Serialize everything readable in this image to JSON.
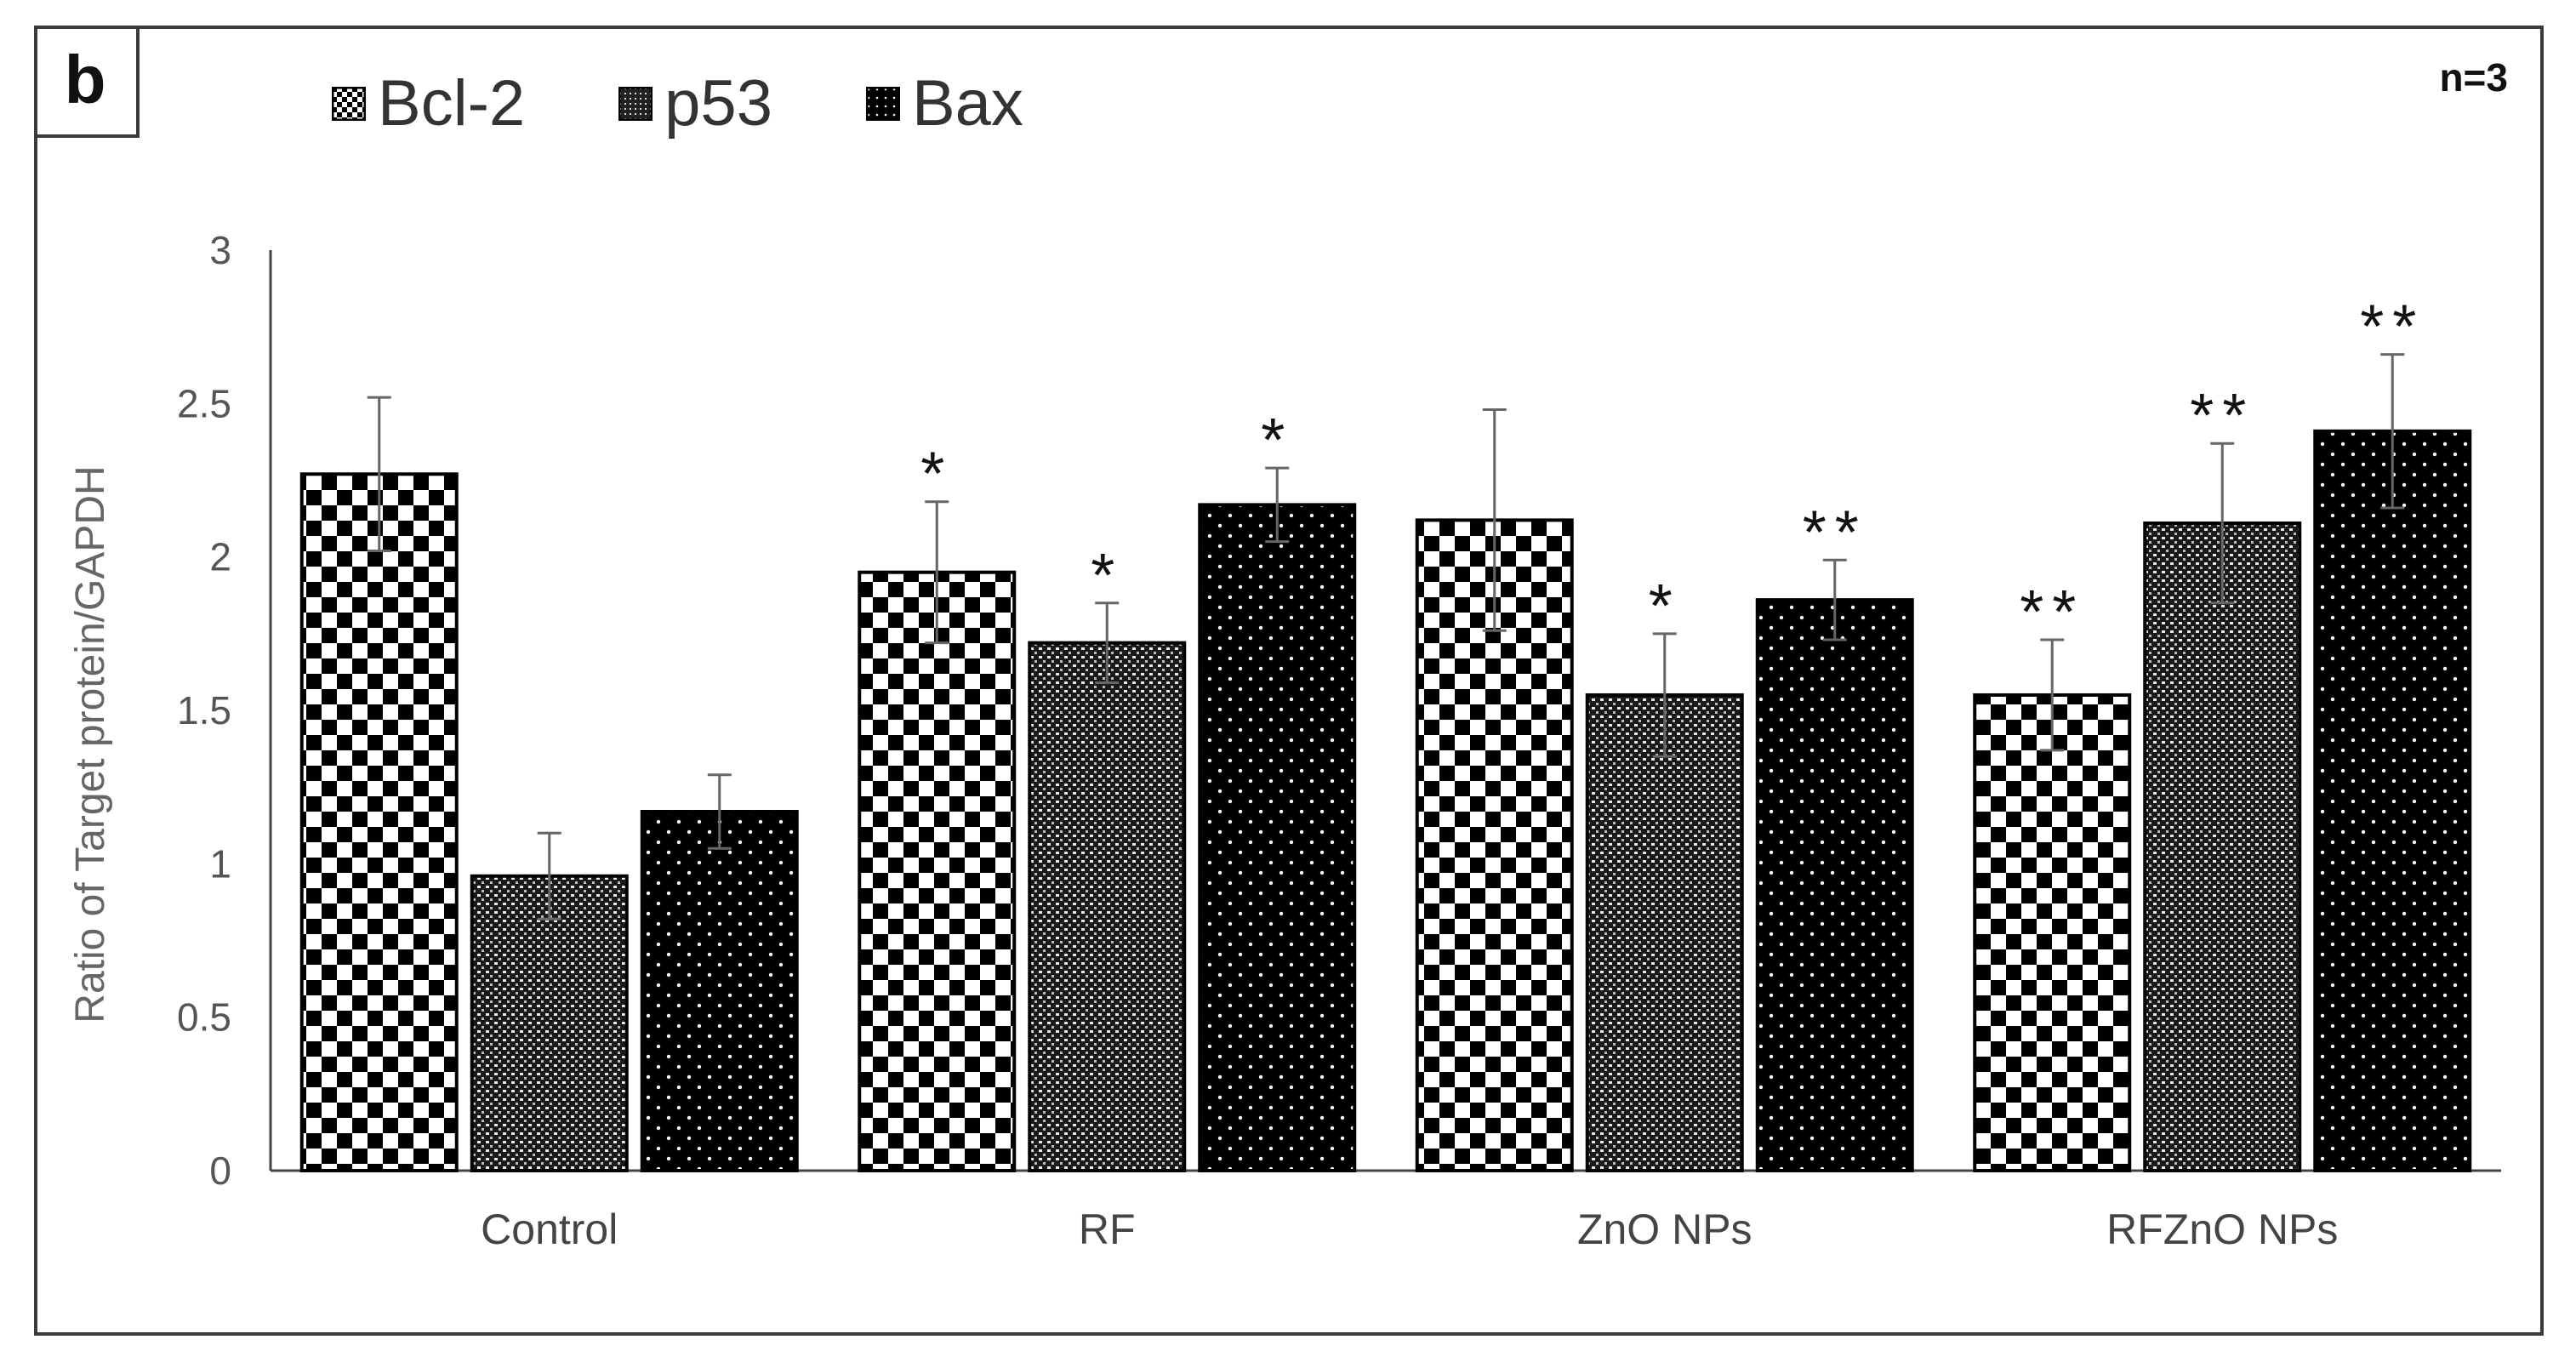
{
  "panel_label": "b",
  "annotation_n": "n=3",
  "chart_data": {
    "type": "bar",
    "title": "",
    "xlabel": "",
    "ylabel": "Ratio of Target protein/GAPDH",
    "ylim": [
      0,
      3
    ],
    "yticks": [
      "0",
      "0.5",
      "1",
      "1.5",
      "2",
      "2.5",
      "3"
    ],
    "grid": false,
    "legend_position": "top-left",
    "categories": [
      "Control",
      "RF",
      "ZnO NPs",
      "RFZnO NPs"
    ],
    "series": [
      {
        "name": "Bcl-2",
        "pattern": "checkerboard",
        "values": [
          2.27,
          1.95,
          2.12,
          1.55
        ],
        "errors": [
          0.25,
          0.23,
          0.36,
          0.18
        ],
        "significance": [
          "",
          "*",
          "",
          "**"
        ]
      },
      {
        "name": "p53",
        "pattern": "dense-dot",
        "values": [
          0.96,
          1.72,
          1.55,
          2.11
        ],
        "errors": [
          0.14,
          0.13,
          0.2,
          0.26
        ],
        "significance": [
          "",
          "*",
          "*",
          "**"
        ]
      },
      {
        "name": "Bax",
        "pattern": "dots-on-black",
        "values": [
          1.17,
          2.17,
          1.86,
          2.41
        ],
        "errors": [
          0.12,
          0.12,
          0.13,
          0.25
        ],
        "significance": [
          "",
          "*",
          "**",
          "**"
        ]
      }
    ],
    "colors": {
      "ink": "#000000",
      "axis": "#555555",
      "text": "#444444"
    }
  }
}
